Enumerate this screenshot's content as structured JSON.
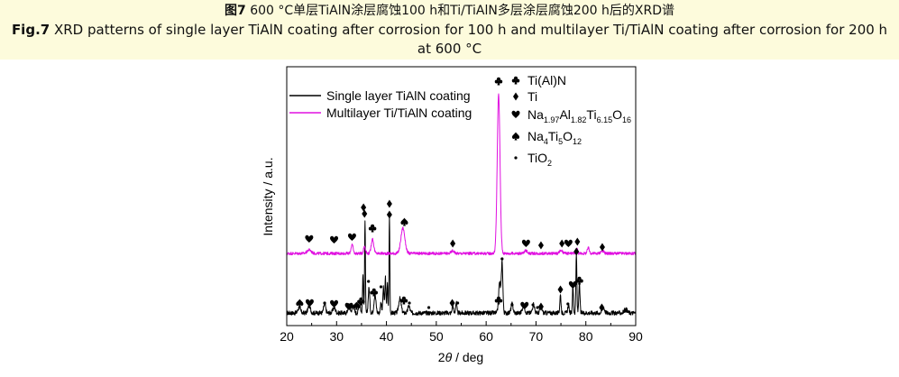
{
  "caption": {
    "zh_label": "图7",
    "zh_text": " 600 °C单层TiAlN涂层腐蚀100 h和Ti/TiAlN多层涂层腐蚀200 h后的XRD谱",
    "en_label": "Fig.7",
    "en_text_line1": " XRD patterns of single layer TiAlN coating after corrosion for 100 h and multilayer Ti/TiAlN coating after corrosion for 200 h",
    "en_text_line2": "at 600 °C"
  },
  "chart_data": {
    "type": "line",
    "xlabel_prefix": "2",
    "xlabel_theta": "θ",
    "xlabel_suffix": " / deg",
    "ylabel": "Intensity / a.u.",
    "xlim": [
      20,
      90
    ],
    "xticks": [
      "20",
      "30",
      "40",
      "50",
      "60",
      "70",
      "80",
      "90"
    ],
    "yticks_visible": false,
    "legend_position": "top-left",
    "series": [
      {
        "name": "Single layer TiAlN coating",
        "color": "#000000",
        "baseline": 0.07,
        "noise": 0.012,
        "peaks": [
          {
            "x": 22.5,
            "h": 0.03,
            "w": 0.25
          },
          {
            "x": 24.5,
            "h": 0.04,
            "w": 0.25
          },
          {
            "x": 27.6,
            "h": 0.05,
            "w": 0.2
          },
          {
            "x": 29.5,
            "h": 0.03,
            "w": 0.25
          },
          {
            "x": 32.5,
            "h": 0.05,
            "w": 0.2
          },
          {
            "x": 33.3,
            "h": 0.04,
            "w": 0.2
          },
          {
            "x": 34.6,
            "h": 0.07,
            "w": 0.15
          },
          {
            "x": 35.3,
            "h": 0.21,
            "w": 0.1
          },
          {
            "x": 35.7,
            "h": 0.52,
            "w": 0.08
          },
          {
            "x": 36.5,
            "h": 0.14,
            "w": 0.15
          },
          {
            "x": 37.7,
            "h": 0.1,
            "w": 0.2
          },
          {
            "x": 38.9,
            "h": 0.06,
            "w": 0.12
          },
          {
            "x": 39.4,
            "h": 0.14,
            "w": 0.12
          },
          {
            "x": 39.8,
            "h": 0.2,
            "w": 0.1
          },
          {
            "x": 40.2,
            "h": 0.16,
            "w": 0.1
          },
          {
            "x": 40.6,
            "h": 0.54,
            "w": 0.08
          },
          {
            "x": 42.7,
            "h": 0.08,
            "w": 0.25
          },
          {
            "x": 44.5,
            "h": 0.04,
            "w": 0.2
          },
          {
            "x": 53.3,
            "h": 0.05,
            "w": 0.12
          },
          {
            "x": 54.0,
            "h": 0.06,
            "w": 0.12
          },
          {
            "x": 62.7,
            "h": 0.17,
            "w": 0.2
          },
          {
            "x": 63.2,
            "h": 0.28,
            "w": 0.15
          },
          {
            "x": 65.2,
            "h": 0.05,
            "w": 0.2
          },
          {
            "x": 67.5,
            "h": 0.04,
            "w": 0.25
          },
          {
            "x": 69.5,
            "h": 0.05,
            "w": 0.2
          },
          {
            "x": 71.0,
            "h": 0.04,
            "w": 0.2
          },
          {
            "x": 74.9,
            "h": 0.1,
            "w": 0.12
          },
          {
            "x": 76.5,
            "h": 0.04,
            "w": 0.15
          },
          {
            "x": 77.4,
            "h": 0.15,
            "w": 0.1
          },
          {
            "x": 78.1,
            "h": 0.32,
            "w": 0.1
          },
          {
            "x": 78.7,
            "h": 0.16,
            "w": 0.12
          },
          {
            "x": 83.5,
            "h": 0.03,
            "w": 0.25
          },
          {
            "x": 88.0,
            "h": 0.02,
            "w": 0.3
          }
        ]
      },
      {
        "name": "Multilayer Ti/TiAlN coating",
        "color": "#e010e0",
        "baseline": 0.4,
        "noise": 0.008,
        "peaks": [
          {
            "x": 24.5,
            "h": 0.02,
            "w": 0.4
          },
          {
            "x": 33.1,
            "h": 0.05,
            "w": 0.2
          },
          {
            "x": 35.6,
            "h": 0.04,
            "w": 0.2
          },
          {
            "x": 37.2,
            "h": 0.08,
            "w": 0.25
          },
          {
            "x": 43.3,
            "h": 0.14,
            "w": 0.4
          },
          {
            "x": 53.3,
            "h": 0.015,
            "w": 0.3
          },
          {
            "x": 62.5,
            "h": 0.88,
            "w": 0.28
          },
          {
            "x": 68.0,
            "h": 0.015,
            "w": 0.3
          },
          {
            "x": 75.0,
            "h": 0.015,
            "w": 0.3
          },
          {
            "x": 78.2,
            "h": 0.03,
            "w": 0.15
          },
          {
            "x": 80.5,
            "h": 0.03,
            "w": 0.2
          },
          {
            "x": 83.3,
            "h": 0.015,
            "w": 0.3
          }
        ]
      }
    ],
    "phase_legend": [
      {
        "symbol": "club",
        "text": "Ti(Al)N"
      },
      {
        "symbol": "diamond",
        "text": "Ti"
      },
      {
        "symbol": "heart",
        "text": "Na",
        "sub1": "1.97",
        "t2": "Al",
        "sub2": "1.82",
        "t3": "Ti",
        "sub3": "6.15",
        "t4": "O",
        "sub4": "16"
      },
      {
        "symbol": "spade",
        "text": "Na",
        "sub1": "4",
        "t2": "Ti",
        "sub2": "5",
        "t3": "O",
        "sub3": "12"
      },
      {
        "symbol": "dot",
        "text": "TiO",
        "sub1": "2"
      }
    ],
    "peak_markers": [
      {
        "x": 24.5,
        "y": 0.48,
        "symbol": "heart"
      },
      {
        "x": 29.5,
        "y": 0.475,
        "symbol": "heart"
      },
      {
        "x": 33.1,
        "y": 0.49,
        "symbol": "heart"
      },
      {
        "x": 35.6,
        "y": 0.62,
        "symbol": "diamond"
      },
      {
        "x": 37.2,
        "y": 0.54,
        "symbol": "club"
      },
      {
        "x": 40.6,
        "y": 0.615,
        "symbol": "diamond"
      },
      {
        "x": 43.6,
        "y": 0.575,
        "symbol": "spade"
      },
      {
        "x": 53.3,
        "y": 0.455,
        "symbol": "diamond"
      },
      {
        "x": 62.5,
        "y": 1.355,
        "symbol": "club"
      },
      {
        "x": 68.0,
        "y": 0.455,
        "symbol": "heart"
      },
      {
        "x": 71.0,
        "y": 0.445,
        "symbol": "diamond"
      },
      {
        "x": 75.2,
        "y": 0.455,
        "symbol": "diamond"
      },
      {
        "x": 76.5,
        "y": 0.455,
        "symbol": "heart"
      },
      {
        "x": 78.3,
        "y": 0.465,
        "symbol": "diamond"
      },
      {
        "x": 83.3,
        "y": 0.435,
        "symbol": "diamond"
      },
      {
        "x": 22.6,
        "y": 0.125,
        "symbol": "spade"
      },
      {
        "x": 24.6,
        "y": 0.125,
        "symbol": "heart"
      },
      {
        "x": 27.6,
        "y": 0.125,
        "symbol": "dot"
      },
      {
        "x": 29.5,
        "y": 0.12,
        "symbol": "heart"
      },
      {
        "x": 32.5,
        "y": 0.105,
        "symbol": "heart"
      },
      {
        "x": 33.2,
        "y": 0.105,
        "symbol": "dot"
      },
      {
        "x": 34.0,
        "y": 0.11,
        "symbol": "spade"
      },
      {
        "x": 34.9,
        "y": 0.135,
        "symbol": "club"
      },
      {
        "x": 35.4,
        "y": 0.655,
        "symbol": "diamond"
      },
      {
        "x": 36.4,
        "y": 0.245,
        "symbol": "dot"
      },
      {
        "x": 37.5,
        "y": 0.185,
        "symbol": "club"
      },
      {
        "x": 38.9,
        "y": 0.215,
        "symbol": "dot"
      },
      {
        "x": 40.6,
        "y": 0.675,
        "symbol": "diamond"
      },
      {
        "x": 43.5,
        "y": 0.14,
        "symbol": "club"
      },
      {
        "x": 44.6,
        "y": 0.125,
        "symbol": "dot"
      },
      {
        "x": 48.5,
        "y": 0.1,
        "symbol": "dot"
      },
      {
        "x": 53.2,
        "y": 0.125,
        "symbol": "diamond"
      },
      {
        "x": 54.3,
        "y": 0.125,
        "symbol": "dot"
      },
      {
        "x": 62.5,
        "y": 0.14,
        "symbol": "club"
      },
      {
        "x": 63.2,
        "y": 0.37,
        "symbol": "dot"
      },
      {
        "x": 65.2,
        "y": 0.115,
        "symbol": "dot"
      },
      {
        "x": 67.7,
        "y": 0.11,
        "symbol": "heart"
      },
      {
        "x": 69.4,
        "y": 0.115,
        "symbol": "dot"
      },
      {
        "x": 70.3,
        "y": 0.1,
        "symbol": "dot"
      },
      {
        "x": 71.0,
        "y": 0.105,
        "symbol": "diamond"
      },
      {
        "x": 74.9,
        "y": 0.2,
        "symbol": "diamond"
      },
      {
        "x": 76.4,
        "y": 0.12,
        "symbol": "dot"
      },
      {
        "x": 77.4,
        "y": 0.225,
        "symbol": "heart"
      },
      {
        "x": 78.1,
        "y": 0.41,
        "symbol": "diamond"
      },
      {
        "x": 78.7,
        "y": 0.25,
        "symbol": "club"
      },
      {
        "x": 83.2,
        "y": 0.1,
        "symbol": "diamond"
      },
      {
        "x": 88.0,
        "y": 0.08,
        "symbol": "dot"
      }
    ]
  }
}
